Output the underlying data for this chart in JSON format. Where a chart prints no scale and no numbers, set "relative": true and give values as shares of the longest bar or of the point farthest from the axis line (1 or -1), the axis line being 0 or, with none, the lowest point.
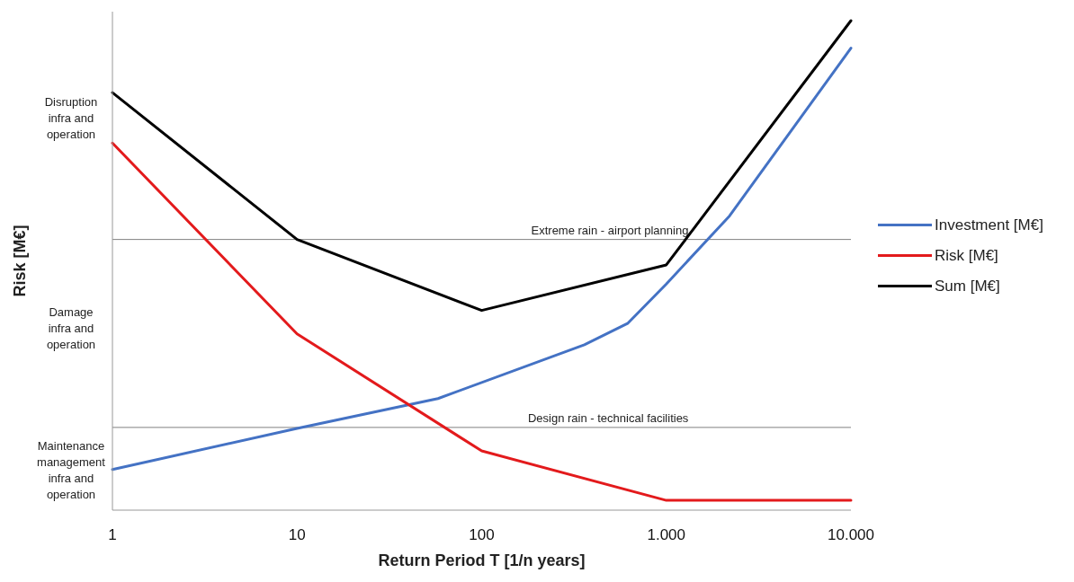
{
  "chart_data": {
    "type": "line",
    "xlabel": "Return Period T [1/n years]",
    "ylabel": "Risk [M€]",
    "log": "x",
    "relative": true,
    "xlim": [
      1,
      10000
    ],
    "xticks": [
      1,
      10,
      100,
      {
        "value": 1000,
        "label": "1.000"
      },
      {
        "value": 10000,
        "label": "10.000"
      }
    ],
    "series": [
      {
        "name": "Investment [M€]",
        "color": "#4472c4",
        "x": [
          1,
          10,
          58,
          360,
          620,
          1000,
          2200,
          10000
        ],
        "values": [
          0.083,
          0.167,
          0.228,
          0.338,
          0.382,
          0.462,
          0.601,
          0.944
        ]
      },
      {
        "name": "Risk [M€]",
        "color": "#e31a1c",
        "x": [
          1,
          10,
          100,
          1000,
          10000
        ],
        "values": [
          0.75,
          0.36,
          0.121,
          0.02,
          0.02
        ]
      },
      {
        "name": "Sum [M€]",
        "color": "#000000",
        "x": [
          1,
          10,
          100,
          1000,
          10000
        ],
        "values": [
          0.853,
          0.553,
          0.408,
          0.501,
          1
        ]
      }
    ],
    "ref_lines": [
      {
        "axis": "y",
        "value": 0.553,
        "label": "Extreme rain - airport planning",
        "color": "#808080"
      },
      {
        "axis": "y",
        "value": 0.169,
        "label": "Design rain - technical facilities",
        "color": "#808080"
      }
    ],
    "annotations": [
      "Disruption infra and operation",
      "Damage infra and operation",
      "Maintenance management infra and operation"
    ],
    "legend": "right",
    "marker": "none",
    "line_style": "solid"
  }
}
